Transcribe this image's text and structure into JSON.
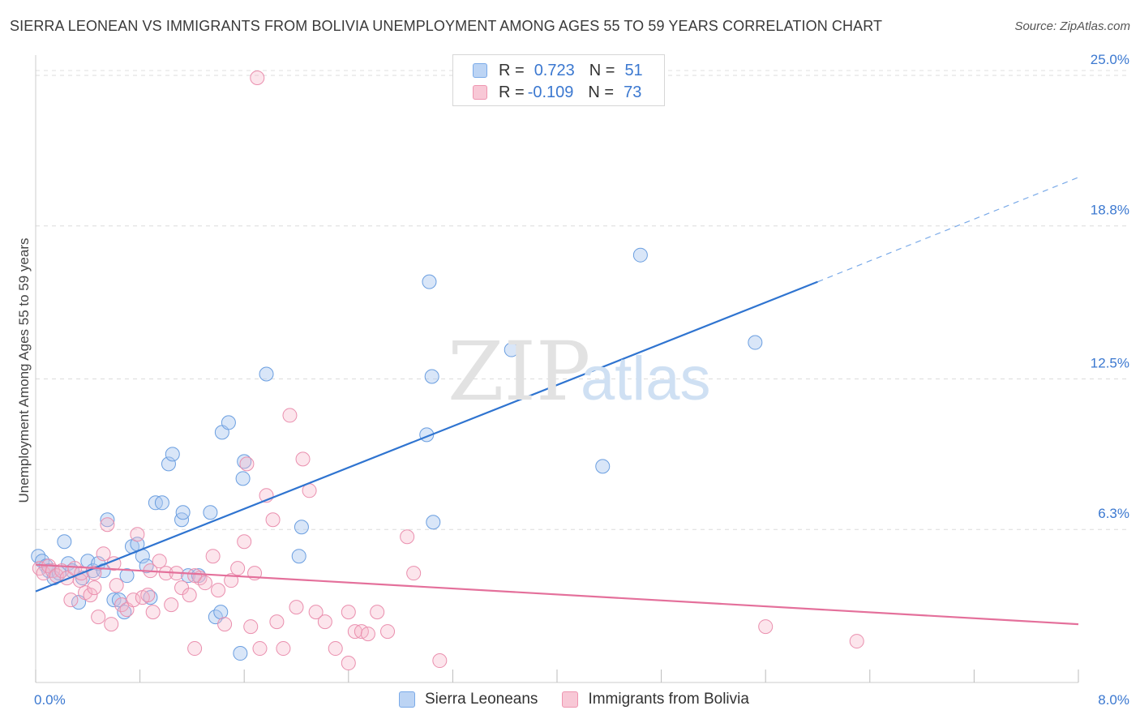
{
  "title": "SIERRA LEONEAN VS IMMIGRANTS FROM BOLIVIA UNEMPLOYMENT AMONG AGES 55 TO 59 YEARS CORRELATION CHART",
  "source": "Source: ZipAtlas.com",
  "watermark": {
    "part1": "ZIP",
    "part2": "atlas"
  },
  "legend": {
    "r_label": "R =",
    "n_label": "N =",
    "series": [
      {
        "name": "Sierra Leoneans",
        "r": "0.723",
        "n": "51",
        "color": "#7aaae8",
        "fill": "#bcd4f4"
      },
      {
        "name": "Immigrants from Bolivia",
        "r": "-0.109",
        "n": "73",
        "color": "#ee95b0",
        "fill": "#f8c8d6"
      }
    ]
  },
  "chart_data": {
    "type": "scatter",
    "title": "SIERRA LEONEAN VS IMMIGRANTS FROM BOLIVIA UNEMPLOYMENT AMONG AGES 55 TO 59 YEARS CORRELATION CHART",
    "xlabel": "",
    "ylabel": "Unemployment Among Ages 55 to 59 years",
    "xlim": [
      0,
      8
    ],
    "ylim": [
      0,
      25.5
    ],
    "x_tick_labels": [
      "0.0%",
      "8.0%"
    ],
    "y_ticks": [
      6.3,
      12.5,
      18.8,
      25.0
    ],
    "y_tick_labels": [
      "6.3%",
      "12.5%",
      "18.8%",
      "25.0%"
    ],
    "series": [
      {
        "name": "Sierra Leoneans",
        "color": "#3b78d0",
        "points": [
          [
            0.02,
            5.2
          ],
          [
            0.05,
            5.0
          ],
          [
            0.08,
            4.8
          ],
          [
            0.1,
            4.6
          ],
          [
            0.14,
            4.3
          ],
          [
            0.18,
            4.5
          ],
          [
            0.22,
            5.8
          ],
          [
            0.25,
            4.9
          ],
          [
            0.28,
            4.6
          ],
          [
            0.33,
            3.3
          ],
          [
            0.36,
            4.3
          ],
          [
            0.4,
            5.0
          ],
          [
            0.44,
            4.6
          ],
          [
            0.48,
            4.9
          ],
          [
            0.52,
            4.6
          ],
          [
            0.55,
            6.7
          ],
          [
            0.6,
            3.4
          ],
          [
            0.64,
            3.4
          ],
          [
            0.68,
            2.9
          ],
          [
            0.7,
            4.4
          ],
          [
            0.74,
            5.6
          ],
          [
            0.78,
            5.7
          ],
          [
            0.82,
            5.2
          ],
          [
            0.85,
            4.8
          ],
          [
            0.88,
            3.5
          ],
          [
            0.92,
            7.4
          ],
          [
            0.97,
            7.4
          ],
          [
            1.02,
            9.0
          ],
          [
            1.05,
            9.4
          ],
          [
            1.12,
            6.7
          ],
          [
            1.13,
            7.0
          ],
          [
            1.17,
            4.4
          ],
          [
            1.25,
            4.4
          ],
          [
            1.34,
            7.0
          ],
          [
            1.38,
            2.7
          ],
          [
            1.42,
            2.9
          ],
          [
            1.43,
            10.3
          ],
          [
            1.48,
            10.7
          ],
          [
            1.57,
            1.2
          ],
          [
            1.59,
            8.4
          ],
          [
            1.6,
            9.1
          ],
          [
            1.77,
            12.7
          ],
          [
            2.04,
            6.4
          ],
          [
            2.02,
            5.2
          ],
          [
            3.0,
            10.2
          ],
          [
            3.02,
            16.5
          ],
          [
            3.04,
            12.6
          ],
          [
            3.05,
            6.6
          ],
          [
            3.65,
            13.7
          ],
          [
            4.35,
            8.9
          ],
          [
            4.64,
            17.6
          ],
          [
            5.52,
            14.0
          ]
        ],
        "trend": {
          "x0": 0.0,
          "y0": 3.75,
          "x1": 6.0,
          "y1": 16.5,
          "dash_x1": 8.0,
          "dash_y1": 20.8
        }
      },
      {
        "name": "Immigrants from Bolivia",
        "color": "#e8699a",
        "points": [
          [
            0.03,
            4.7
          ],
          [
            0.06,
            4.5
          ],
          [
            0.1,
            4.8
          ],
          [
            0.13,
            4.6
          ],
          [
            0.16,
            4.4
          ],
          [
            0.2,
            4.6
          ],
          [
            0.24,
            4.3
          ],
          [
            0.27,
            3.4
          ],
          [
            0.3,
            4.7
          ],
          [
            0.34,
            4.2
          ],
          [
            0.38,
            3.7
          ],
          [
            0.42,
            3.6
          ],
          [
            0.45,
            4.5
          ],
          [
            0.48,
            2.7
          ],
          [
            0.52,
            5.3
          ],
          [
            0.55,
            6.5
          ],
          [
            0.58,
            2.4
          ],
          [
            0.62,
            4.0
          ],
          [
            0.66,
            3.2
          ],
          [
            0.7,
            3.0
          ],
          [
            0.75,
            3.4
          ],
          [
            0.78,
            6.1
          ],
          [
            0.82,
            3.5
          ],
          [
            0.86,
            3.6
          ],
          [
            0.9,
            2.9
          ],
          [
            0.95,
            5.0
          ],
          [
            1.0,
            4.5
          ],
          [
            1.04,
            3.2
          ],
          [
            1.08,
            4.5
          ],
          [
            1.12,
            3.9
          ],
          [
            1.18,
            3.6
          ],
          [
            1.22,
            1.4
          ],
          [
            1.26,
            4.3
          ],
          [
            1.3,
            4.1
          ],
          [
            1.36,
            5.2
          ],
          [
            1.4,
            3.8
          ],
          [
            1.45,
            2.4
          ],
          [
            1.5,
            4.2
          ],
          [
            1.55,
            4.7
          ],
          [
            1.6,
            5.8
          ],
          [
            1.65,
            2.3
          ],
          [
            1.68,
            4.5
          ],
          [
            1.72,
            1.4
          ],
          [
            1.77,
            7.7
          ],
          [
            1.82,
            6.7
          ],
          [
            1.85,
            2.5
          ],
          [
            1.9,
            1.4
          ],
          [
            1.95,
            11.0
          ],
          [
            2.0,
            3.1
          ],
          [
            2.05,
            9.2
          ],
          [
            2.1,
            7.9
          ],
          [
            2.15,
            2.9
          ],
          [
            2.22,
            2.5
          ],
          [
            2.3,
            1.4
          ],
          [
            2.4,
            0.8
          ],
          [
            2.45,
            2.1
          ],
          [
            2.5,
            2.1
          ],
          [
            2.55,
            2.0
          ],
          [
            2.62,
            2.9
          ],
          [
            2.7,
            2.1
          ],
          [
            2.85,
            6.0
          ],
          [
            2.9,
            4.5
          ],
          [
            3.1,
            0.9
          ],
          [
            1.7,
            24.9
          ],
          [
            0.35,
            4.5
          ],
          [
            0.6,
            4.9
          ],
          [
            1.22,
            4.4
          ],
          [
            1.62,
            9.0
          ],
          [
            2.4,
            2.9
          ],
          [
            5.6,
            2.3
          ],
          [
            6.3,
            1.7
          ],
          [
            0.88,
            4.6
          ],
          [
            0.45,
            3.9
          ]
        ],
        "trend": {
          "x0": 0.0,
          "y0": 4.85,
          "x1": 8.0,
          "y1": 2.4
        }
      }
    ]
  }
}
